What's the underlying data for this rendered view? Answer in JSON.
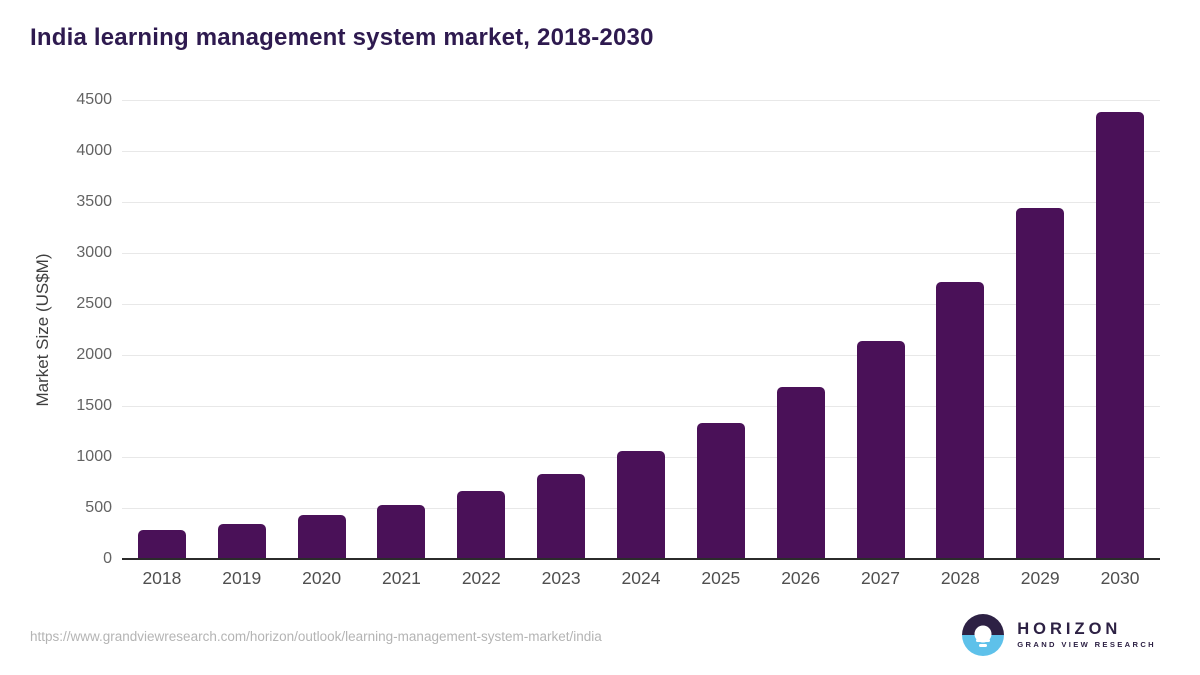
{
  "chart_data": {
    "type": "bar",
    "title": "India learning management system market, 2018-2030",
    "categories": [
      "2018",
      "2019",
      "2020",
      "2021",
      "2022",
      "2023",
      "2024",
      "2025",
      "2026",
      "2027",
      "2028",
      "2029",
      "2030"
    ],
    "values": [
      285,
      345,
      430,
      525,
      665,
      835,
      1055,
      1330,
      1685,
      2135,
      2715,
      3445,
      4380
    ],
    "xlabel": "",
    "ylabel": "Market Size (US$M)",
    "ylim": [
      0,
      4500
    ],
    "ytick_step": 500,
    "grid": true,
    "legend": false,
    "bar_color": "#4a1158"
  },
  "footer": {
    "source_url": "https://www.grandviewresearch.com/horizon/outlook/learning-management-system-market/india",
    "logo": {
      "name": "HORIZON",
      "subtitle": "GRAND VIEW RESEARCH"
    }
  },
  "colors": {
    "bar": "#4a1158",
    "title": "#2e1a4f",
    "gridline": "#e8e8e8",
    "axis_line": "#2b2b2b",
    "tick_label": "#636363",
    "x_label": "#4f4f4f",
    "y_axis_label": "#3f3f3f",
    "url_text": "#b4b4b4",
    "logo_navy": "#2d2144",
    "logo_blue": "#5ec1ea"
  }
}
